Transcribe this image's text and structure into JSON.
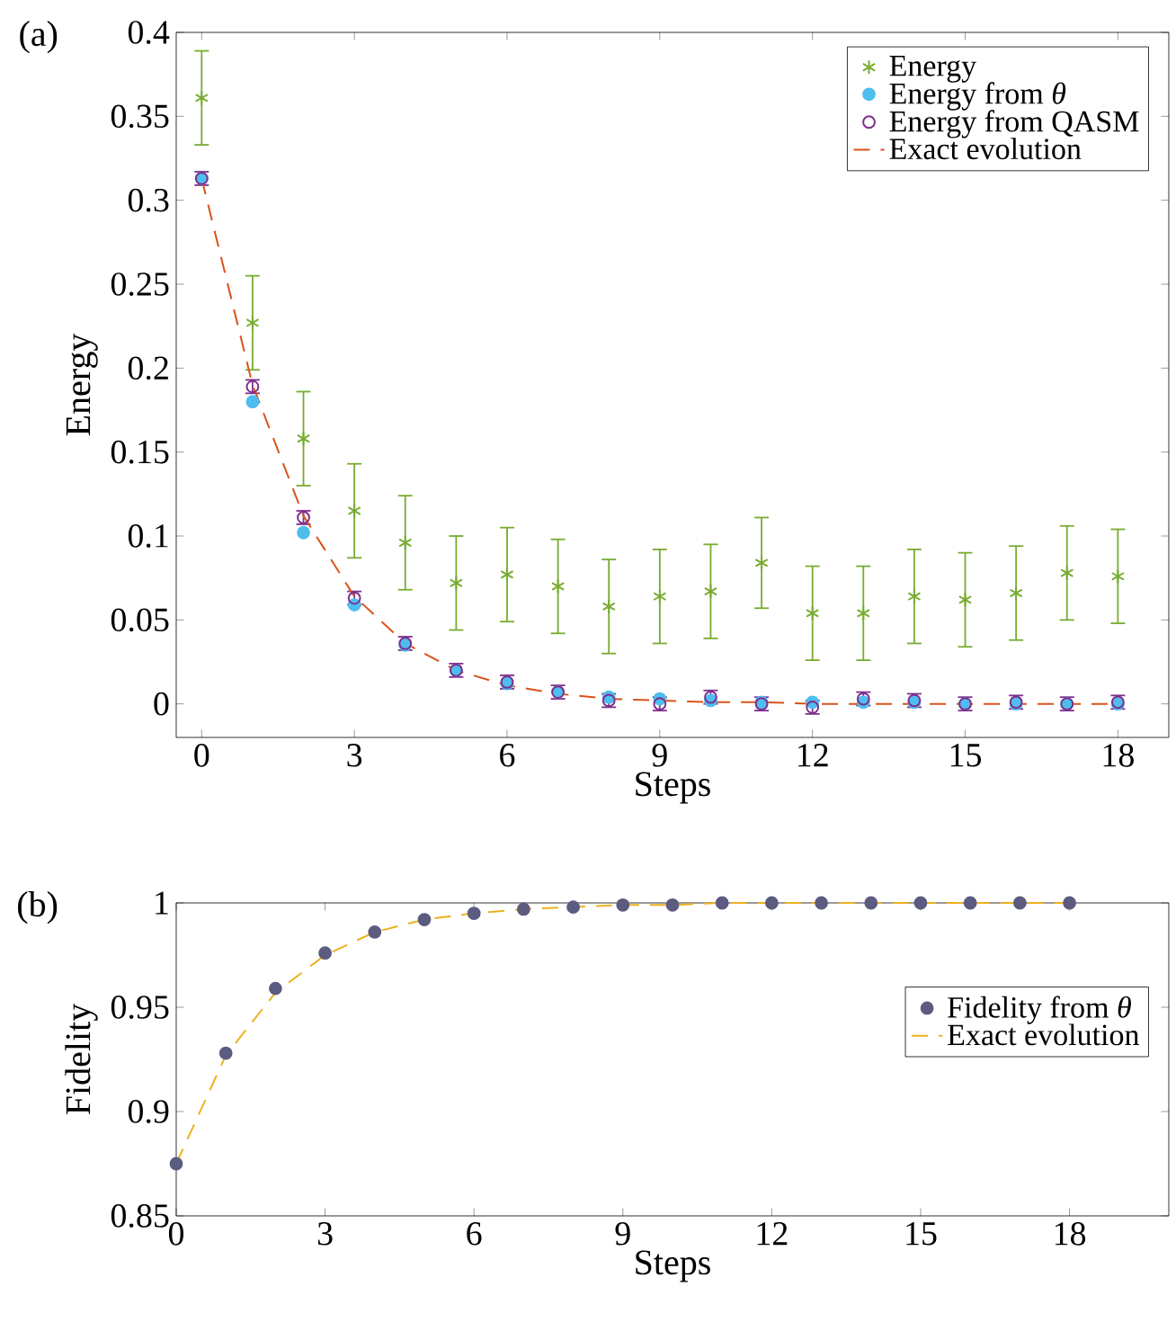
{
  "chart_data": [
    {
      "type": "scatter",
      "xlabel": "Steps",
      "ylabel": "Energy",
      "annotations": [
        "(a)"
      ],
      "x": [
        0,
        1,
        2,
        3,
        4,
        5,
        6,
        7,
        8,
        9,
        10,
        11,
        12,
        13,
        14,
        15,
        16,
        17,
        18
      ],
      "xlim": [
        -0.5,
        19
      ],
      "xticks": [
        0,
        3,
        6,
        9,
        12,
        15,
        18
      ],
      "ylim": [
        -0.02,
        0.4
      ],
      "yticks": [
        0,
        0.05,
        0.1,
        0.15,
        0.2,
        0.25,
        0.3,
        0.35,
        0.4
      ],
      "legend": "top right",
      "series": [
        {
          "name": "Energy",
          "marker": "cross",
          "color": "#77ac30",
          "values": [
            0.361,
            0.227,
            0.158,
            0.115,
            0.096,
            0.072,
            0.077,
            0.07,
            0.058,
            0.064,
            0.067,
            0.084,
            0.054,
            0.054,
            0.064,
            0.062,
            0.066,
            0.078,
            0.076
          ],
          "errors": [
            0.028,
            0.028,
            0.028,
            0.028,
            0.028,
            0.028,
            0.028,
            0.028,
            0.028,
            0.028,
            0.028,
            0.027,
            0.028,
            0.028,
            0.028,
            0.028,
            0.028,
            0.028,
            0.028
          ]
        },
        {
          "name": "Energy from *θ*",
          "marker": "circle",
          "color": "#4dbeee",
          "values": [
            0.313,
            0.18,
            0.102,
            0.059,
            0.035,
            0.02,
            0.012,
            0.007,
            0.004,
            0.003,
            0.002,
            0.001,
            0.001,
            0.001,
            0.001,
            0.0,
            0.0,
            0.0,
            0.0
          ]
        },
        {
          "name": "Energy from QASM",
          "marker": "circle",
          "color": "#7e2f8e",
          "values": [
            0.313,
            0.189,
            0.111,
            0.063,
            0.036,
            0.02,
            0.013,
            0.007,
            0.002,
            0.0,
            0.004,
            0.0,
            -0.002,
            0.003,
            0.002,
            0.0,
            0.001,
            0.0,
            0.001
          ],
          "errors": [
            0.004,
            0.004,
            0.004,
            0.004,
            0.004,
            0.004,
            0.004,
            0.004,
            0.004,
            0.004,
            0.004,
            0.004,
            0.004,
            0.004,
            0.004,
            0.004,
            0.004,
            0.004,
            0.004
          ]
        },
        {
          "name": "Exact evolution",
          "type": "line",
          "marker": "none",
          "line_style": "dashed",
          "color": "#d95319",
          "values": [
            0.313,
            0.19,
            0.112,
            0.064,
            0.036,
            0.02,
            0.011,
            0.006,
            0.003,
            0.002,
            0.001,
            0.001,
            0,
            0,
            0,
            0,
            0,
            0,
            0
          ]
        }
      ]
    },
    {
      "type": "scatter",
      "xlabel": "Steps",
      "ylabel": "Fidelity",
      "annotations": [
        "(b)"
      ],
      "x": [
        0,
        1,
        2,
        3,
        4,
        5,
        6,
        7,
        8,
        9,
        10,
        11,
        12,
        13,
        14,
        15,
        16,
        17,
        18
      ],
      "xlim": [
        0,
        20
      ],
      "xticks": [
        0,
        3,
        6,
        9,
        12,
        15,
        18
      ],
      "ylim": [
        0.85,
        1
      ],
      "yticks": [
        0.85,
        0.9,
        0.95,
        1
      ],
      "legend": "right",
      "series": [
        {
          "name": "Fidelity from *θ*",
          "marker": "circle",
          "color": "#5c5c80",
          "values": [
            0.875,
            0.928,
            0.959,
            0.976,
            0.986,
            0.992,
            0.995,
            0.997,
            0.998,
            0.999,
            0.999,
            1.0,
            1.0,
            1.0,
            1.0,
            1.0,
            1.0,
            1.0,
            1.0
          ]
        },
        {
          "name": "Exact evolution",
          "type": "line",
          "marker": "none",
          "line_style": "dashed",
          "color": "#edb120",
          "values": [
            0.875,
            0.927,
            0.957,
            0.975,
            0.986,
            0.992,
            0.995,
            0.997,
            0.998,
            0.999,
            0.999,
            1.0,
            1.0,
            1.0,
            1.0,
            1.0,
            1.0,
            1.0,
            1.0
          ]
        }
      ]
    }
  ]
}
